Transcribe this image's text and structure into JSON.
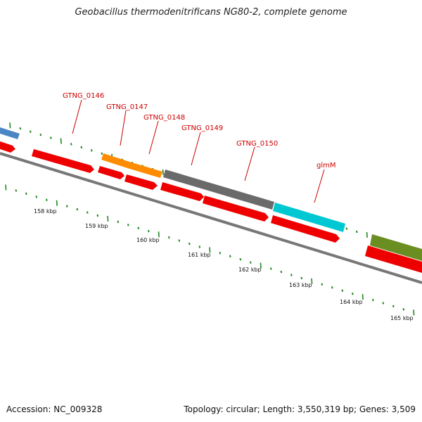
{
  "title": "Geobacillus thermodenitrificans NG80-2, complete genome",
  "accession": "Accession: NC_009328",
  "summary": "Topology: circular; Length: 3,550,319 bp; Genes: 3,509",
  "colors": {
    "cds": "#ee0000",
    "backbone": "#777777",
    "tick": "#228822",
    "label": "#cc0000"
  },
  "gene_labels": [
    {
      "text": "GTNG_0146",
      "color": "#ff8c00"
    },
    {
      "text": "GTNG_0147",
      "color": "#ff8c00"
    },
    {
      "text": "GTNG_0148",
      "color": "#ff8c00"
    },
    {
      "text": "GTNG_0149",
      "color": "#666666"
    },
    {
      "text": "GTNG_0150",
      "color": "#00c8d2"
    },
    {
      "text": "glmM",
      "color": "#6b8e23"
    }
  ],
  "kbp_ticks": [
    "158 kbp",
    "159 kbp",
    "160 kbp",
    "161 kbp",
    "162 kbp",
    "163 kbp",
    "164 kbp",
    "165 kbp"
  ]
}
